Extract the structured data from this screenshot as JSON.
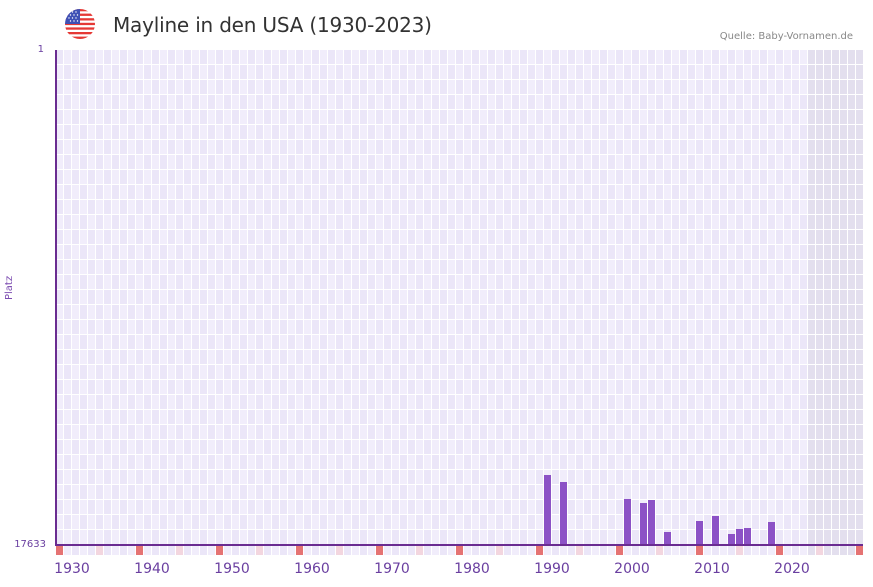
{
  "header": {
    "title": "Mayline in den USA (1930-2023)",
    "source": "Quelle: Baby-Vornamen.de",
    "flag_icon": "us-flag-icon"
  },
  "colors": {
    "bar": "#8c52c6",
    "axis": "#6a2c91",
    "grid_light": "#f1edfb",
    "grid_dark": "#ebe6f8",
    "future_shade": "#e3dfee",
    "marker_decade": "#e57373",
    "marker_half": "#f3d6df"
  },
  "chart_data": {
    "type": "bar",
    "title": "Mayline in den USA (1930-2023)",
    "xlabel": "",
    "ylabel": "Platz",
    "y_inverted": true,
    "ylim": [
      1,
      17633
    ],
    "ytick_labels": [
      "1",
      "17633"
    ],
    "xtick_labels": [
      "1930",
      "1940",
      "1950",
      "1960",
      "1970",
      "1980",
      "1990",
      "2000",
      "2010",
      "2020"
    ],
    "xlim": [
      1930,
      2030
    ],
    "grid": true,
    "shaded_future_from": 2024,
    "categories": [
      1991,
      1993,
      2001,
      2003,
      2004,
      2006,
      2010,
      2012,
      2014,
      2015,
      2016,
      2019
    ],
    "values": [
      15170,
      15420,
      16030,
      16170,
      16060,
      17200,
      16810,
      16630,
      17280,
      17100,
      17070,
      16850
    ],
    "series": [
      {
        "name": "Platz",
        "values": [
          15170,
          15420,
          16030,
          16170,
          16060,
          17200,
          16810,
          16630,
          17280,
          17100,
          17070,
          16850
        ]
      }
    ],
    "source": "Quelle: Baby-Vornamen.de"
  }
}
